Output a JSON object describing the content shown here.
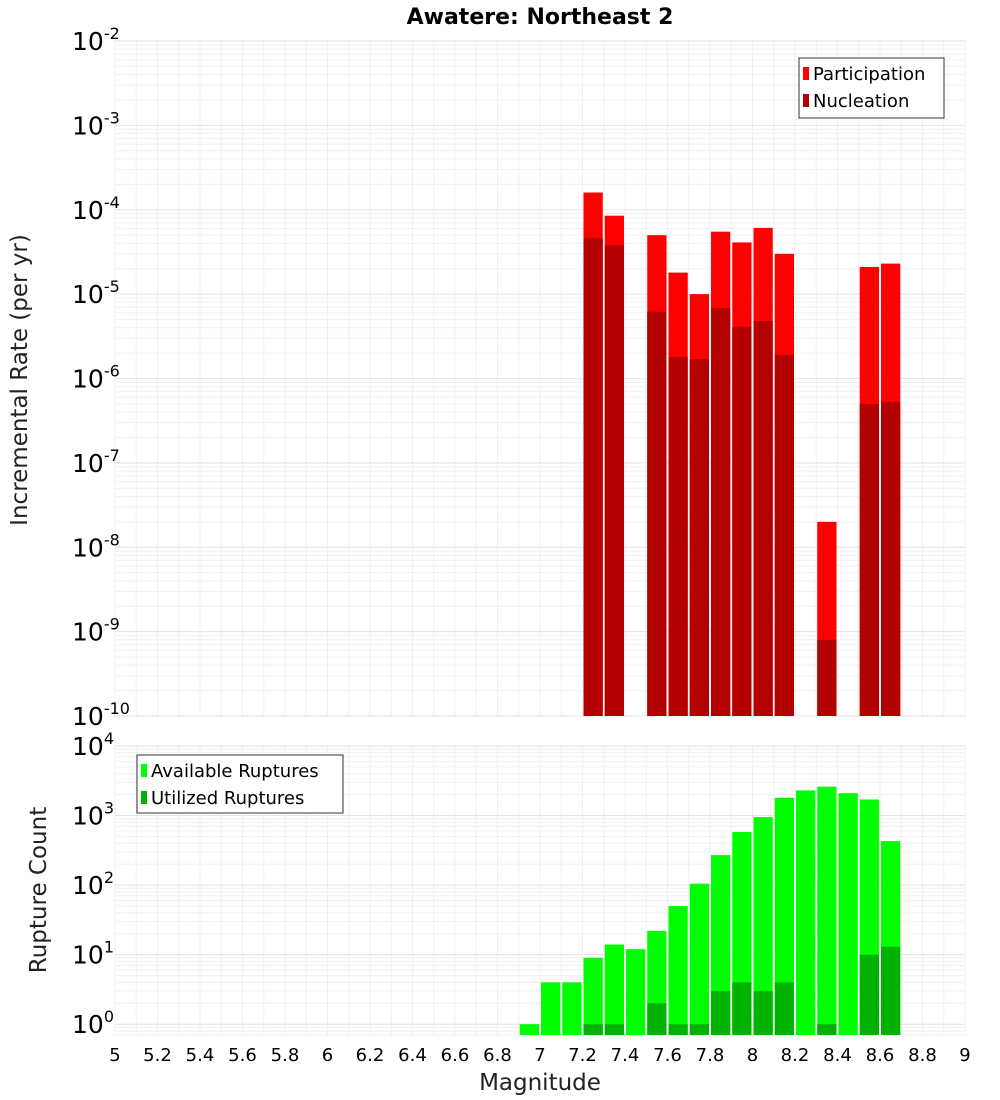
{
  "chart_data": [
    {
      "type": "bar",
      "title": "Awatere: Northeast 2",
      "xlabel": "",
      "ylabel": "Incremental Rate (per yr)",
      "yscale": "log",
      "xlim": [
        5,
        9
      ],
      "ylim": [
        1e-10,
        0.01
      ],
      "y_tick_exponents": [
        -10,
        -9,
        -8,
        -7,
        -6,
        -5,
        -4,
        -3,
        -2
      ],
      "grid": true,
      "bar_width": 0.1,
      "legend": {
        "position": "top-right"
      },
      "series": [
        {
          "name": "Participation",
          "color": "#ff0000",
          "points": [
            [
              7.25,
              0.00016
            ],
            [
              7.35,
              8.5e-05
            ],
            [
              7.55,
              5e-05
            ],
            [
              7.65,
              1.8e-05
            ],
            [
              7.75,
              1e-05
            ],
            [
              7.85,
              5.5e-05
            ],
            [
              7.95,
              4.1e-05
            ],
            [
              8.05,
              6.1e-05
            ],
            [
              8.15,
              3e-05
            ],
            [
              8.35,
              2e-08
            ],
            [
              8.55,
              2.1e-05
            ],
            [
              8.65,
              2.3e-05
            ]
          ]
        },
        {
          "name": "Nucleation",
          "color": "#b30000",
          "points": [
            [
              7.25,
              4.6e-05
            ],
            [
              7.35,
              3.8e-05
            ],
            [
              7.55,
              6.2e-06
            ],
            [
              7.65,
              1.8e-06
            ],
            [
              7.75,
              1.7e-06
            ],
            [
              7.85,
              6.8e-06
            ],
            [
              7.95,
              4.1e-06
            ],
            [
              8.05,
              4.8e-06
            ],
            [
              8.15,
              1.9e-06
            ],
            [
              8.35,
              8e-10
            ],
            [
              8.55,
              5e-07
            ],
            [
              8.65,
              5.3e-07
            ]
          ]
        }
      ]
    },
    {
      "type": "bar",
      "title": "",
      "xlabel": "Magnitude",
      "ylabel": "Rupture Count",
      "yscale": "log",
      "xlim": [
        5,
        9
      ],
      "ylim": [
        0.7,
        10000
      ],
      "y_tick_exponents": [
        0,
        1,
        2,
        3,
        4
      ],
      "x_ticks": [
        "5",
        "5.2",
        "5.4",
        "5.6",
        "5.8",
        "6",
        "6.2",
        "6.4",
        "6.6",
        "6.8",
        "7",
        "7.2",
        "7.4",
        "7.6",
        "7.8",
        "8",
        "8.2",
        "8.4",
        "8.6",
        "8.8",
        "9"
      ],
      "grid": true,
      "bar_width": 0.1,
      "legend": {
        "position": "top-left"
      },
      "series": [
        {
          "name": "Available Ruptures",
          "color": "#00ff00",
          "points": [
            [
              6.95,
              1
            ],
            [
              7.05,
              4
            ],
            [
              7.15,
              4
            ],
            [
              7.25,
              9
            ],
            [
              7.35,
              14
            ],
            [
              7.45,
              12
            ],
            [
              7.55,
              22
            ],
            [
              7.65,
              50
            ],
            [
              7.75,
              105
            ],
            [
              7.85,
              270
            ],
            [
              7.95,
              580
            ],
            [
              8.05,
              950
            ],
            [
              8.15,
              1800
            ],
            [
              8.25,
              2300
            ],
            [
              8.35,
              2600
            ],
            [
              8.45,
              2100
            ],
            [
              8.55,
              1700
            ],
            [
              8.65,
              430
            ]
          ]
        },
        {
          "name": "Utilized Ruptures",
          "color": "#00b300",
          "points": [
            [
              7.25,
              1
            ],
            [
              7.35,
              1
            ],
            [
              7.55,
              2
            ],
            [
              7.65,
              1
            ],
            [
              7.75,
              1
            ],
            [
              7.85,
              3
            ],
            [
              7.95,
              4
            ],
            [
              8.05,
              3
            ],
            [
              8.15,
              4
            ],
            [
              8.35,
              1
            ],
            [
              8.55,
              10
            ],
            [
              8.65,
              13
            ]
          ]
        }
      ]
    }
  ]
}
